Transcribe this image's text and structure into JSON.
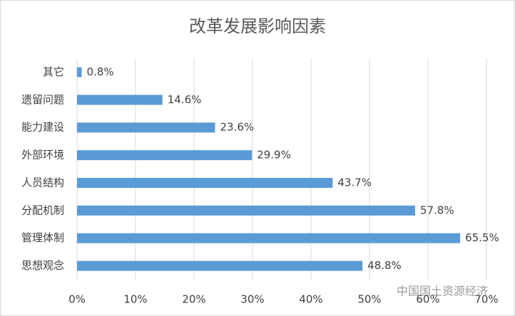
{
  "chart_data": {
    "type": "bar",
    "orientation": "horizontal",
    "title": "改革发展影响因素",
    "categories": [
      "其它",
      "遗留问题",
      "能力建设",
      "外部环境",
      "人员结构",
      "分配机制",
      "管理体制",
      "思想观念"
    ],
    "values": [
      0.8,
      14.6,
      23.6,
      29.9,
      43.7,
      57.8,
      65.5,
      48.8
    ],
    "value_labels": [
      "0.8%",
      "14.6%",
      "23.6%",
      "29.9%",
      "43.7%",
      "57.8%",
      "65.5%",
      "48.8%"
    ],
    "color": "#5b9bd5",
    "xlim": [
      0,
      70
    ],
    "xticks": [
      {
        "value": 0,
        "label": "0%"
      },
      {
        "value": 10,
        "label": "10%"
      },
      {
        "value": 20,
        "label": "20%"
      },
      {
        "value": 30,
        "label": "30%"
      },
      {
        "value": 40,
        "label": "40%"
      },
      {
        "value": 50,
        "label": "50%"
      },
      {
        "value": 60,
        "label": "60%"
      },
      {
        "value": 70,
        "label": "70%"
      }
    ],
    "grid": true,
    "watermark": "中国国土资源经济"
  }
}
